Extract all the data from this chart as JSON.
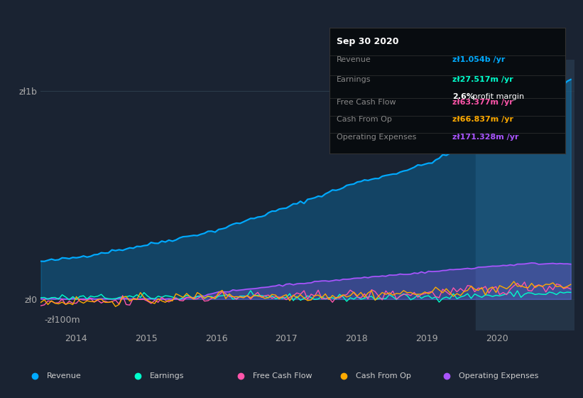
{
  "background_color": "#1a2332",
  "plot_bg_color": "#1a2332",
  "highlight_bg_color": "#243447",
  "title": "Sep 30 2020",
  "y_label_1b": "zł1b",
  "y_label_0": "zł0",
  "y_label_neg100m": "-zł100m",
  "x_ticks": [
    "2014",
    "2015",
    "2016",
    "2017",
    "2018",
    "2019",
    "2020"
  ],
  "ylim": [
    -150000000,
    1150000000
  ],
  "colors": {
    "revenue": "#00aaff",
    "earnings": "#00ffcc",
    "free_cash_flow": "#ff55aa",
    "cash_from_op": "#ffaa00",
    "operating_expenses": "#aa55ff"
  },
  "legend_items": [
    "Revenue",
    "Earnings",
    "Free Cash Flow",
    "Cash From Op",
    "Operating Expenses"
  ],
  "tooltip_title": "Sep 30 2020",
  "tooltip_bg": "#080c10",
  "tooltip_border": "#333333",
  "rows": [
    {
      "label": "Revenue",
      "value": "zł1.054b /yr",
      "value_color": "#00aaff"
    },
    {
      "label": "Earnings",
      "value": "zł27.517m /yr",
      "value_color": "#00ffcc",
      "sub": "2.6% profit margin"
    },
    {
      "label": "Free Cash Flow",
      "value": "zł63.377m /yr",
      "value_color": "#ff55aa"
    },
    {
      "label": "Cash From Op",
      "value": "zł66.837m /yr",
      "value_color": "#ffaa00"
    },
    {
      "label": "Operating Expenses",
      "value": "zł171.328m /yr",
      "value_color": "#aa55ff"
    }
  ]
}
